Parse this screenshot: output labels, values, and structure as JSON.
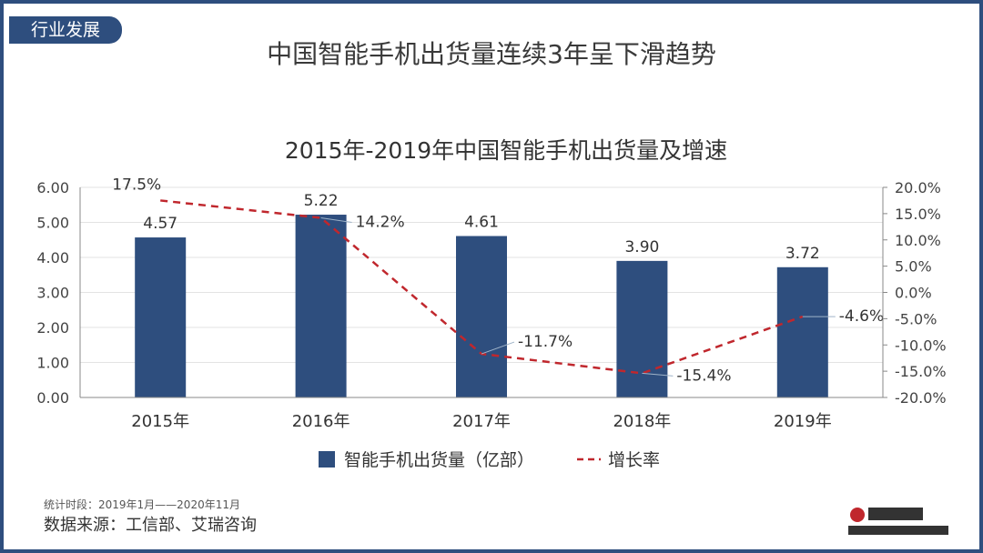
{
  "header": {
    "tag": "行业发展",
    "title": "中国智能手机出货量连续3年呈下滑趋势"
  },
  "chart_data": {
    "type": "bar",
    "title": "2015年-2019年中国智能手机出货量及增速",
    "categories": [
      "2015年",
      "2016年",
      "2017年",
      "2018年",
      "2019年"
    ],
    "series": [
      {
        "name": "智能手机出货量（亿部）",
        "type": "bar",
        "axis": "left",
        "values": [
          4.57,
          5.22,
          4.61,
          3.9,
          3.72
        ],
        "labels": [
          "4.57",
          "5.22",
          "4.61",
          "3.90",
          "3.72"
        ],
        "color": "#2e4e7e"
      },
      {
        "name": "增长率",
        "type": "line",
        "style": "dashed",
        "axis": "right",
        "values": [
          17.5,
          14.2,
          -11.7,
          -15.4,
          -4.6
        ],
        "labels": [
          "17.5%",
          "14.2%",
          "-11.7%",
          "-15.4%",
          "-4.6%"
        ],
        "color": "#c0272d"
      }
    ],
    "ylim": [
      0,
      6
    ],
    "y_ticks": [
      "0.00",
      "1.00",
      "2.00",
      "3.00",
      "4.00",
      "5.00",
      "6.00"
    ],
    "y2lim": [
      -20,
      20
    ],
    "y2_ticks": [
      "-20.0%",
      "-15.0%",
      "-10.0%",
      "-5.0%",
      "0.0%",
      "5.0%",
      "10.0%",
      "15.0%",
      "20.0%"
    ],
    "grid": true,
    "legend_position": "bottom"
  },
  "footer": {
    "period": "统计时段：2019年1月——2020年11月",
    "source": "数据来源：工信部、艾瑞咨询"
  }
}
